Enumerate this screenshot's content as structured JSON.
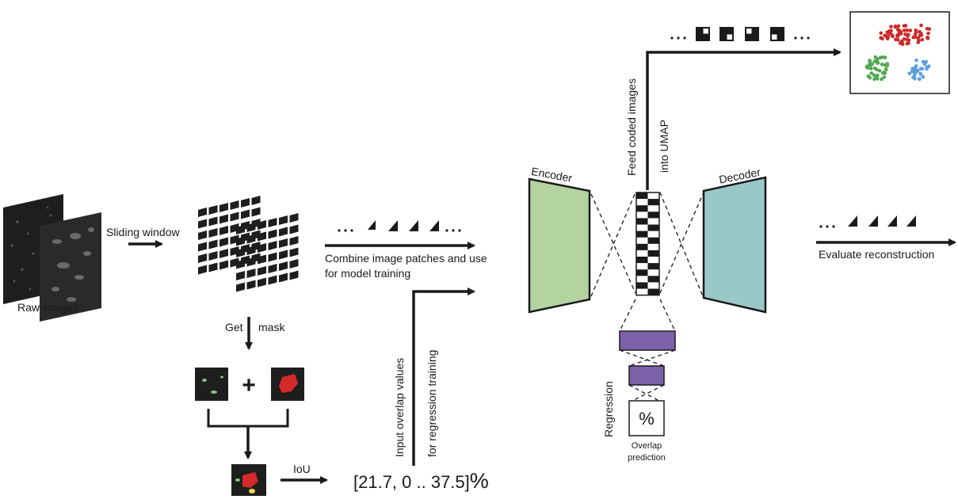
{
  "labels": {
    "raw_images": "Raw images",
    "sliding_window": "Sliding window",
    "get": "Get",
    "mask": "mask",
    "iou": "IoU",
    "overlap_values": "[21.7, 0 .. 37.5]",
    "percent_sign": "%",
    "combine_line1": "Combine image patches and use",
    "combine_line2": "for model training",
    "input_overlap_line1": "Input overlap values",
    "input_overlap_line2": "for regression training",
    "encoder": "Encoder",
    "decoder": "Decoder",
    "feed_line1": "Feed coded images",
    "feed_line2": "into UMAP",
    "regression": "Regression",
    "percent_box": "%",
    "overlap_prediction_line1": "Overlap",
    "overlap_prediction_line2": "prediction",
    "evaluate": "Evaluate reconstruction",
    "plus": "+",
    "ellipsis": "..."
  },
  "colors": {
    "encoder_fill": "#b3d3a0",
    "decoder_fill": "#9ac8c8",
    "regression_fill": "#7b62a8",
    "cluster_red": "#cc2a2a",
    "cluster_green": "#52a852",
    "cluster_blue": "#5aa0dc",
    "mask_red": "#d42a2a",
    "mask_green": "#7fc87f",
    "patch_dark": "#1e1e1e"
  },
  "icons": {
    "raw_images": "stacked-dark-micrograph-images",
    "grid": "stacked-patch-grid",
    "umap": "umap-scatter-clusters",
    "bottleneck": "checkerboard-code-column"
  }
}
